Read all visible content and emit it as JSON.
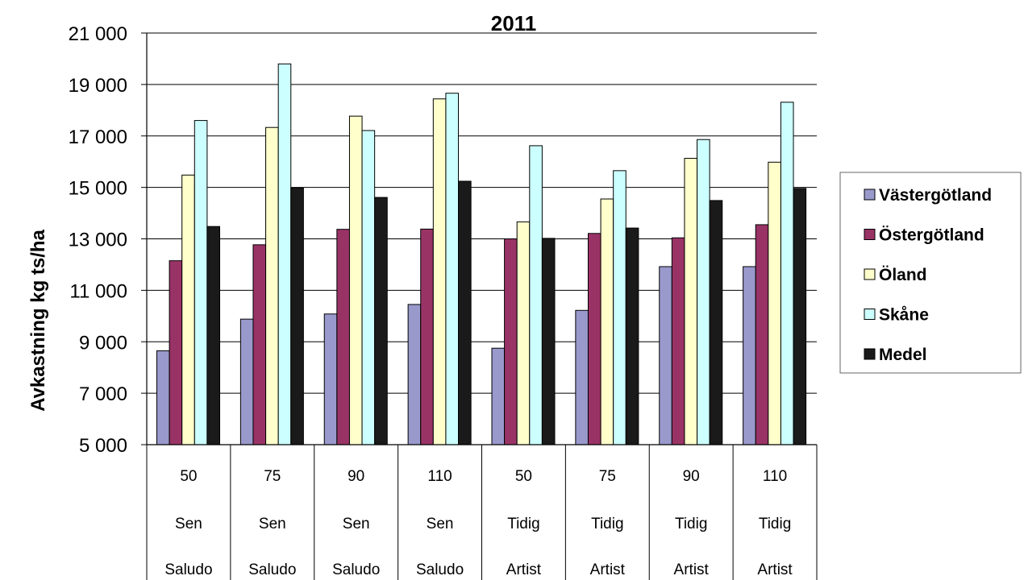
{
  "chart_data": {
    "type": "bar",
    "title": "2011",
    "xlabel": "",
    "ylabel": "Avkastning kg ts/ha",
    "ylim": [
      5000,
      21000
    ],
    "yticks": [
      5000,
      7000,
      9000,
      11000,
      13000,
      15000,
      17000,
      19000,
      21000
    ],
    "ytick_labels": [
      "5 000",
      "7 000",
      "9 000",
      "11 000",
      "13 000",
      "15 000",
      "17 000",
      "19 000",
      "21 000"
    ],
    "grid": true,
    "legend_position": "right",
    "categories": [
      [
        "50",
        "Sen",
        "Saludo"
      ],
      [
        "75",
        "Sen",
        "Saludo"
      ],
      [
        "90",
        "Sen",
        "Saludo"
      ],
      [
        "110",
        "Sen",
        "Saludo"
      ],
      [
        "50",
        "Tidig",
        "Artist"
      ],
      [
        "75",
        "Tidig",
        "Artist"
      ],
      [
        "90",
        "Tidig",
        "Artist"
      ],
      [
        "110",
        "Tidig",
        "Artist"
      ]
    ],
    "series": [
      {
        "name": "Västergötland",
        "color": "#9999cc",
        "values": [
          8650,
          9880,
          10080,
          10450,
          8750,
          10220,
          11920,
          11920
        ]
      },
      {
        "name": "Östergötland",
        "color": "#993366",
        "values": [
          12150,
          12770,
          13370,
          13380,
          13000,
          13210,
          13040,
          13550
        ]
      },
      {
        "name": "Öland",
        "color": "#ffffcc",
        "values": [
          15480,
          17330,
          17770,
          18440,
          13660,
          14550,
          16130,
          15980
        ]
      },
      {
        "name": "Skåne",
        "color": "#ccffff",
        "values": [
          17600,
          19800,
          17210,
          18660,
          16620,
          15650,
          16860,
          18310
        ]
      },
      {
        "name": "Medel",
        "color": "#1a1a1a",
        "values": [
          13480,
          14980,
          14610,
          15240,
          13020,
          13420,
          14490,
          14960
        ]
      }
    ]
  }
}
